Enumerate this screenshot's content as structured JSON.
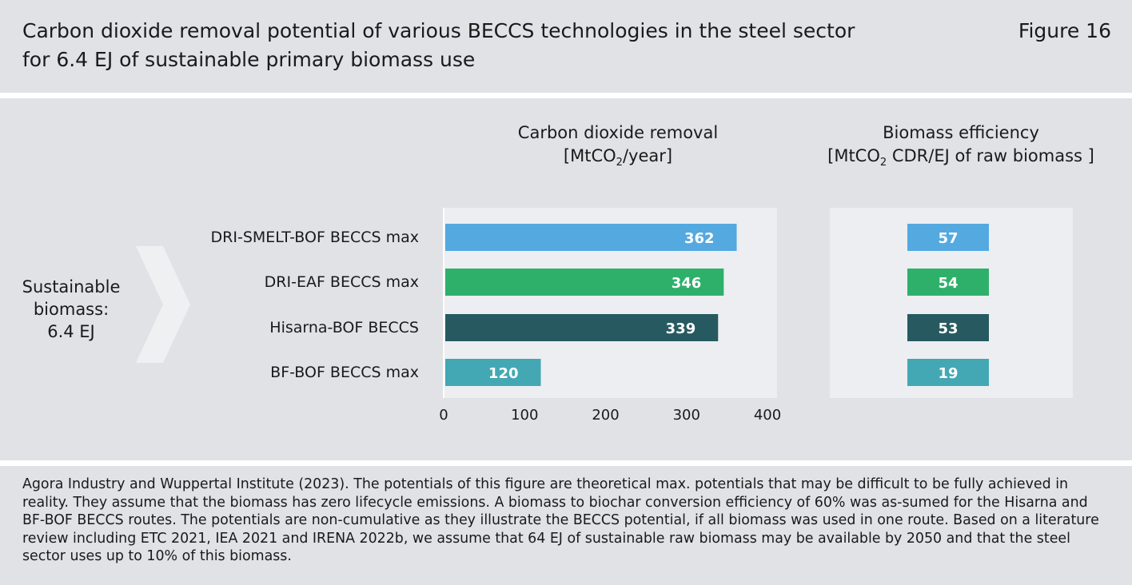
{
  "header": {
    "title_line1": "Carbon dioxide removal potential of various BECCS technologies in the steel sector",
    "title_line2": "for 6.4 EJ of sustainable primary biomass use",
    "figure_label": "Figure 16"
  },
  "input_label": {
    "line1": "Sustainable",
    "line2": "biomass:",
    "line3": "6.4 EJ"
  },
  "columns": {
    "cdr_title": "Carbon dioxide removal",
    "cdr_unit_prefix": "[MtCO",
    "cdr_unit_sub": "2",
    "cdr_unit_suffix": "/year]",
    "eff_title": "Biomass efficiency",
    "eff_unit_prefix": "[MtCO",
    "eff_unit_sub": "2",
    "eff_unit_suffix": " CDR/EJ of raw biomass ]"
  },
  "colors": {
    "panel_bg": "#e1e2e6",
    "plot_bg": "#eceef1",
    "chevron": "#eef0f2"
  },
  "chart_data": [
    {
      "type": "bar",
      "orientation": "horizontal",
      "categories": [
        "DRI-SMELT-BOF BECCS max",
        "DRI-EAF BECCS max",
        "Hisarna-BOF BECCS",
        "BF-BOF BECCS max"
      ],
      "values": [
        362,
        346,
        339,
        120
      ],
      "colors": [
        "#54a9e0",
        "#2fb06a",
        "#265a60",
        "#43a8b4"
      ],
      "title": "Carbon dioxide removal [MtCO2/year]",
      "xlim": [
        0,
        400
      ],
      "xticks": [
        0,
        100,
        200,
        300,
        400
      ],
      "data_labels": [
        "362",
        "346",
        "339",
        "120"
      ]
    },
    {
      "type": "bar",
      "orientation": "horizontal",
      "categories": [
        "DRI-SMELT-BOF BECCS max",
        "DRI-EAF BECCS max",
        "Hisarna-BOF BECCS",
        "BF-BOF BECCS max"
      ],
      "values": [
        57,
        54,
        53,
        19
      ],
      "colors": [
        "#54a9e0",
        "#2fb06a",
        "#265a60",
        "#43a8b4"
      ],
      "title": "Biomass efficiency [MtCO2 CDR/EJ of raw biomass ]",
      "data_labels": [
        "57",
        "54",
        "53",
        "19"
      ]
    }
  ],
  "footer": {
    "text": "Agora Industry and Wuppertal Institute (2023). The potentials of this figure are theoretical max. potentials that may be difficult to be fully achieved in reality. They assume that the biomass has zero lifecycle emissions. A biomass to biochar conversion efficiency of 60% was as-sumed for the Hisarna and BF-BOF BECCS routes. The potentials are non-cumulative as they illustrate the BECCS potential, if all biomass was used in one route. Based on a literature review including ETC 2021, IEA 2021 and IRENA 2022b, we assume that 64 EJ of sustainable raw biomass may be available by 2050 and that the steel sector uses up to 10% of this biomass."
  }
}
